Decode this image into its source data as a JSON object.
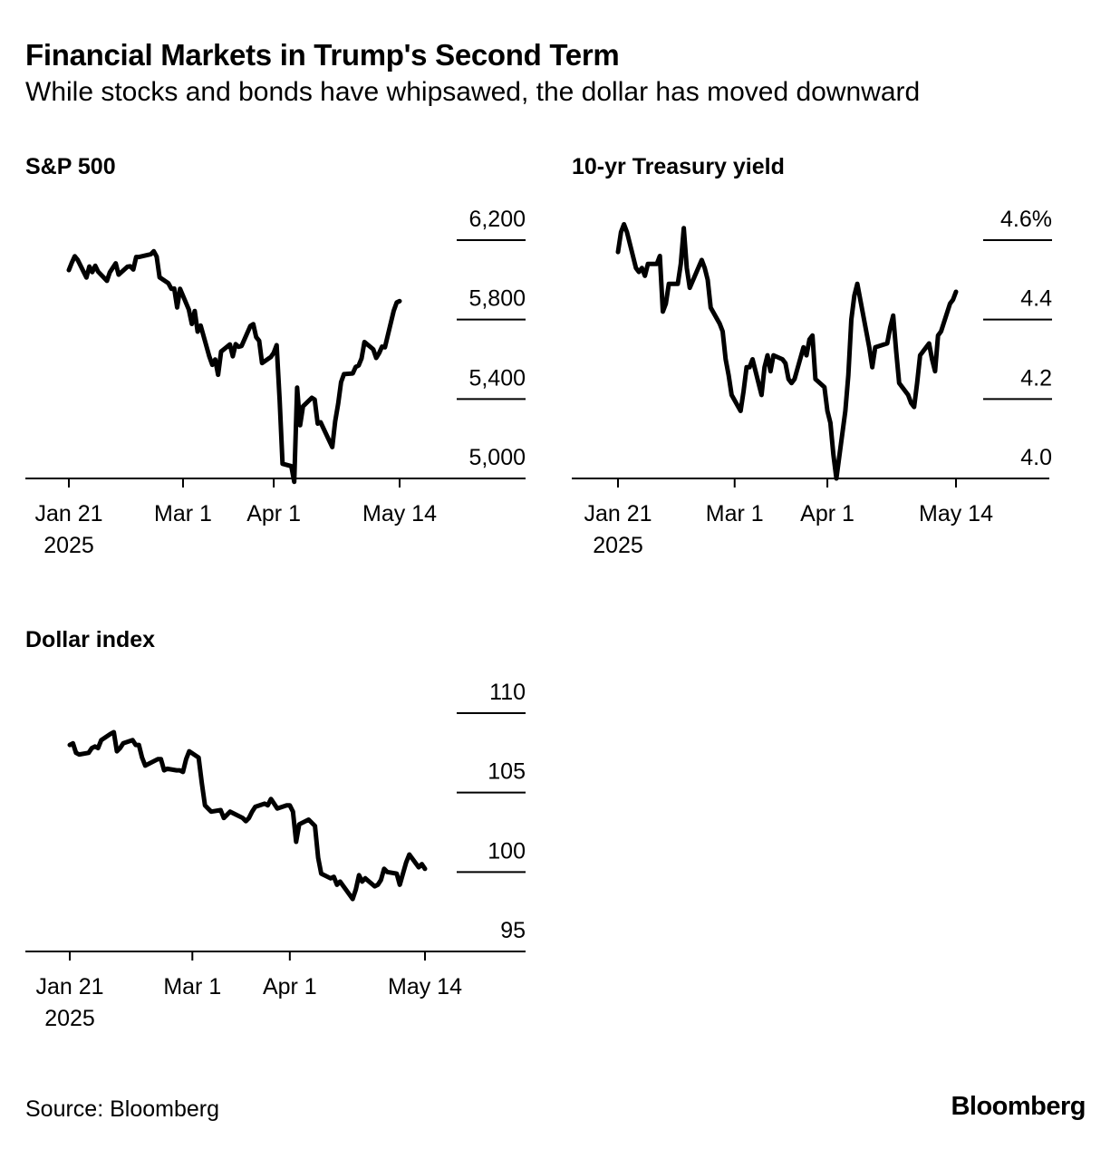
{
  "header": {
    "title": "Financial Markets in Trump's Second Term",
    "subtitle": "While stocks and bonds have whipsawed, the dollar has moved downward"
  },
  "footer": {
    "source": "Source: Bloomberg",
    "brand": "Bloomberg"
  },
  "colors": {
    "line": "#000000",
    "background": "#ffffff",
    "axis": "#000000"
  },
  "chart_data": [
    {
      "type": "line",
      "title": "S&P 500",
      "xlabel": "",
      "ylabel": "",
      "ylim": [
        5000,
        6200
      ],
      "yticks": [
        5000,
        5400,
        5800,
        6200
      ],
      "ytick_labels": [
        "5,000",
        "5,400",
        "5,800",
        "6,200"
      ],
      "xlim": [
        "2025-01-21",
        "2025-05-14"
      ],
      "xticks": [
        {
          "date": "2025-01-21",
          "label": "Jan 21",
          "sublabel": "2025"
        },
        {
          "date": "2025-03-01",
          "label": "Mar 1",
          "sublabel": ""
        },
        {
          "date": "2025-04-01",
          "label": "Apr 1",
          "sublabel": ""
        },
        {
          "date": "2025-05-14",
          "label": "May 14",
          "sublabel": ""
        }
      ],
      "grid": false,
      "series": [
        {
          "x": [
            "2025-01-21",
            "2025-01-22",
            "2025-01-23",
            "2025-01-24",
            "2025-01-27",
            "2025-01-28",
            "2025-01-29",
            "2025-01-30",
            "2025-01-31",
            "2025-02-03",
            "2025-02-04",
            "2025-02-05",
            "2025-02-06",
            "2025-02-07",
            "2025-02-10",
            "2025-02-11",
            "2025-02-12",
            "2025-02-13",
            "2025-02-14",
            "2025-02-18",
            "2025-02-19",
            "2025-02-20",
            "2025-02-21",
            "2025-02-24",
            "2025-02-25",
            "2025-02-26",
            "2025-02-27",
            "2025-02-28",
            "2025-03-03",
            "2025-03-04",
            "2025-03-05",
            "2025-03-06",
            "2025-03-07",
            "2025-03-10",
            "2025-03-11",
            "2025-03-12",
            "2025-03-13",
            "2025-03-14",
            "2025-03-17",
            "2025-03-18",
            "2025-03-19",
            "2025-03-20",
            "2025-03-21",
            "2025-03-24",
            "2025-03-25",
            "2025-03-26",
            "2025-03-27",
            "2025-03-28",
            "2025-03-31",
            "2025-04-01",
            "2025-04-02",
            "2025-04-03",
            "2025-04-04",
            "2025-04-07",
            "2025-04-08",
            "2025-04-09",
            "2025-04-10",
            "2025-04-11",
            "2025-04-14",
            "2025-04-15",
            "2025-04-16",
            "2025-04-17",
            "2025-04-21",
            "2025-04-22",
            "2025-04-23",
            "2025-04-24",
            "2025-04-25",
            "2025-04-28",
            "2025-04-29",
            "2025-04-30",
            "2025-05-01",
            "2025-05-02",
            "2025-05-05",
            "2025-05-06",
            "2025-05-07",
            "2025-05-08",
            "2025-05-09",
            "2025-05-12",
            "2025-05-13",
            "2025-05-14"
          ],
          "values": [
            6049,
            6086,
            6119,
            6101,
            6012,
            6067,
            6039,
            6071,
            6041,
            5995,
            6038,
            6061,
            6083,
            6026,
            6066,
            6068,
            6052,
            6115,
            6115,
            6129,
            6144,
            6117,
            6013,
            5983,
            5955,
            5956,
            5861,
            5955,
            5850,
            5778,
            5843,
            5739,
            5770,
            5614,
            5572,
            5599,
            5522,
            5639,
            5675,
            5615,
            5676,
            5663,
            5667,
            5768,
            5777,
            5712,
            5693,
            5581,
            5612,
            5633,
            5671,
            5396,
            5074,
            5062,
            4983,
            5457,
            5268,
            5363,
            5406,
            5397,
            5276,
            5283,
            5158,
            5288,
            5376,
            5485,
            5525,
            5529,
            5561,
            5569,
            5604,
            5687,
            5650,
            5607,
            5631,
            5664,
            5660,
            5844,
            5886,
            5893
          ]
        }
      ]
    },
    {
      "type": "line",
      "title": "10-yr Treasury yield",
      "xlabel": "",
      "ylabel": "",
      "ylim": [
        4.0,
        4.6
      ],
      "yticks": [
        4.0,
        4.2,
        4.4,
        4.6
      ],
      "ytick_labels": [
        "4.0",
        "4.2",
        "4.4",
        "4.6%"
      ],
      "xlim": [
        "2025-01-21",
        "2025-05-14"
      ],
      "xticks": [
        {
          "date": "2025-01-21",
          "label": "Jan 21",
          "sublabel": "2025"
        },
        {
          "date": "2025-03-01",
          "label": "Mar 1",
          "sublabel": ""
        },
        {
          "date": "2025-04-01",
          "label": "Apr 1",
          "sublabel": ""
        },
        {
          "date": "2025-05-14",
          "label": "May 14",
          "sublabel": ""
        }
      ],
      "grid": false,
      "series": [
        {
          "x": [
            "2025-01-21",
            "2025-01-22",
            "2025-01-23",
            "2025-01-24",
            "2025-01-27",
            "2025-01-28",
            "2025-01-29",
            "2025-01-30",
            "2025-01-31",
            "2025-02-03",
            "2025-02-04",
            "2025-02-05",
            "2025-02-06",
            "2025-02-07",
            "2025-02-10",
            "2025-02-11",
            "2025-02-12",
            "2025-02-13",
            "2025-02-14",
            "2025-02-18",
            "2025-02-19",
            "2025-02-20",
            "2025-02-21",
            "2025-02-24",
            "2025-02-25",
            "2025-02-26",
            "2025-02-27",
            "2025-02-28",
            "2025-03-03",
            "2025-03-04",
            "2025-03-05",
            "2025-03-06",
            "2025-03-07",
            "2025-03-10",
            "2025-03-11",
            "2025-03-12",
            "2025-03-13",
            "2025-03-14",
            "2025-03-17",
            "2025-03-18",
            "2025-03-19",
            "2025-03-20",
            "2025-03-21",
            "2025-03-24",
            "2025-03-25",
            "2025-03-26",
            "2025-03-27",
            "2025-03-28",
            "2025-03-31",
            "2025-04-01",
            "2025-04-02",
            "2025-04-03",
            "2025-04-04",
            "2025-04-07",
            "2025-04-08",
            "2025-04-09",
            "2025-04-10",
            "2025-04-11",
            "2025-04-14",
            "2025-04-15",
            "2025-04-16",
            "2025-04-17",
            "2025-04-21",
            "2025-04-22",
            "2025-04-23",
            "2025-04-24",
            "2025-04-25",
            "2025-04-28",
            "2025-04-29",
            "2025-04-30",
            "2025-05-01",
            "2025-05-02",
            "2025-05-05",
            "2025-05-06",
            "2025-05-07",
            "2025-05-08",
            "2025-05-09",
            "2025-05-12",
            "2025-05-13",
            "2025-05-14"
          ],
          "values": [
            4.57,
            4.62,
            4.64,
            4.62,
            4.53,
            4.52,
            4.53,
            4.51,
            4.54,
            4.54,
            4.56,
            4.42,
            4.44,
            4.49,
            4.49,
            4.54,
            4.63,
            4.53,
            4.48,
            4.55,
            4.53,
            4.5,
            4.43,
            4.39,
            4.37,
            4.3,
            4.26,
            4.21,
            4.17,
            4.22,
            4.28,
            4.28,
            4.3,
            4.21,
            4.28,
            4.31,
            4.27,
            4.31,
            4.3,
            4.29,
            4.25,
            4.24,
            4.25,
            4.33,
            4.31,
            4.35,
            4.36,
            4.25,
            4.23,
            4.17,
            4.14,
            4.06,
            4.0,
            4.17,
            4.26,
            4.4,
            4.46,
            4.49,
            4.37,
            4.33,
            4.28,
            4.33,
            4.34,
            4.38,
            4.41,
            4.32,
            4.24,
            4.21,
            4.19,
            4.18,
            4.24,
            4.31,
            4.34,
            4.3,
            4.27,
            4.36,
            4.37,
            4.44,
            4.45,
            4.47
          ]
        }
      ]
    },
    {
      "type": "line",
      "title": "Dollar index",
      "xlabel": "",
      "ylabel": "",
      "ylim": [
        95,
        110
      ],
      "yticks": [
        95,
        100,
        105,
        110
      ],
      "ytick_labels": [
        "95",
        "100",
        "105",
        "110"
      ],
      "xlim": [
        "2025-01-21",
        "2025-05-14"
      ],
      "xticks": [
        {
          "date": "2025-01-21",
          "label": "Jan 21",
          "sublabel": "2025"
        },
        {
          "date": "2025-03-01",
          "label": "Mar 1",
          "sublabel": ""
        },
        {
          "date": "2025-04-01",
          "label": "Apr 1",
          "sublabel": ""
        },
        {
          "date": "2025-05-14",
          "label": "May 14",
          "sublabel": ""
        }
      ],
      "grid": false,
      "series": [
        {
          "x": [
            "2025-01-21",
            "2025-01-22",
            "2025-01-23",
            "2025-01-24",
            "2025-01-27",
            "2025-01-28",
            "2025-01-29",
            "2025-01-30",
            "2025-01-31",
            "2025-02-03",
            "2025-02-04",
            "2025-02-05",
            "2025-02-06",
            "2025-02-07",
            "2025-02-10",
            "2025-02-11",
            "2025-02-12",
            "2025-02-13",
            "2025-02-14",
            "2025-02-18",
            "2025-02-19",
            "2025-02-20",
            "2025-02-21",
            "2025-02-24",
            "2025-02-25",
            "2025-02-26",
            "2025-02-27",
            "2025-02-28",
            "2025-03-03",
            "2025-03-04",
            "2025-03-05",
            "2025-03-06",
            "2025-03-07",
            "2025-03-10",
            "2025-03-11",
            "2025-03-12",
            "2025-03-13",
            "2025-03-14",
            "2025-03-17",
            "2025-03-18",
            "2025-03-19",
            "2025-03-20",
            "2025-03-21",
            "2025-03-24",
            "2025-03-25",
            "2025-03-26",
            "2025-03-27",
            "2025-03-28",
            "2025-03-31",
            "2025-04-01",
            "2025-04-02",
            "2025-04-03",
            "2025-04-04",
            "2025-04-07",
            "2025-04-08",
            "2025-04-09",
            "2025-04-10",
            "2025-04-11",
            "2025-04-14",
            "2025-04-15",
            "2025-04-16",
            "2025-04-17",
            "2025-04-21",
            "2025-04-22",
            "2025-04-23",
            "2025-04-24",
            "2025-04-25",
            "2025-04-28",
            "2025-04-29",
            "2025-04-30",
            "2025-05-01",
            "2025-05-02",
            "2025-05-05",
            "2025-05-06",
            "2025-05-07",
            "2025-05-08",
            "2025-05-09",
            "2025-05-12",
            "2025-05-13",
            "2025-05-14"
          ],
          "values": [
            108.0,
            108.1,
            107.5,
            107.4,
            107.5,
            107.8,
            107.9,
            107.8,
            108.3,
            108.7,
            108.8,
            107.6,
            107.8,
            108.1,
            108.3,
            108.0,
            108.0,
            107.2,
            106.7,
            107.1,
            107.1,
            106.4,
            106.5,
            106.4,
            106.4,
            106.3,
            107.1,
            107.6,
            107.2,
            105.6,
            104.2,
            104.0,
            103.8,
            103.9,
            103.4,
            103.6,
            103.8,
            103.7,
            103.4,
            103.2,
            103.4,
            103.8,
            104.1,
            104.3,
            104.2,
            104.6,
            104.3,
            104.0,
            104.2,
            104.2,
            103.8,
            101.9,
            103.0,
            103.3,
            103.1,
            102.9,
            100.9,
            99.9,
            99.6,
            99.7,
            99.2,
            99.4,
            98.3,
            98.9,
            99.8,
            99.4,
            99.6,
            99.1,
            99.2,
            99.5,
            100.2,
            100.0,
            99.9,
            99.2,
            99.9,
            100.6,
            101.1,
            100.3,
            100.5,
            100.2
          ]
        }
      ]
    }
  ]
}
